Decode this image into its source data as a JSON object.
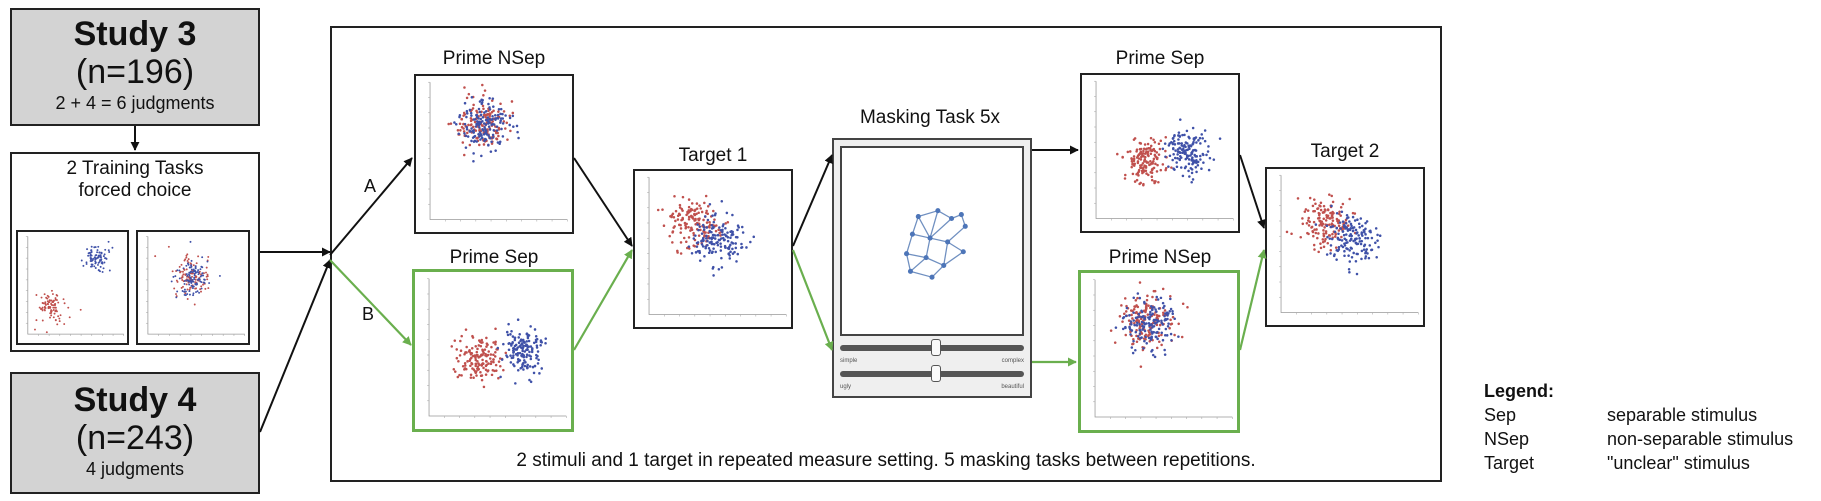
{
  "study3": {
    "title": "Study 3",
    "n": "(n=196)",
    "judgments": "2 + 4 = 6 judgments"
  },
  "training": {
    "line1": "2 Training Tasks",
    "line2": "forced choice"
  },
  "study4": {
    "title": "Study 4",
    "n": "(n=243)",
    "judgments": "4 judgments"
  },
  "paths": {
    "a": "A",
    "b": "B"
  },
  "panels": {
    "prime_nsep_top": "Prime NSep",
    "prime_sep_bottom": "Prime Sep",
    "target1": "Target 1",
    "masking": "Masking Task 5x",
    "prime_sep_top": "Prime Sep",
    "prime_nsep_bottom": "Prime NSep",
    "target2": "Target 2"
  },
  "sliders": [
    {
      "left": "simple",
      "right": "complex",
      "value": 0.52
    },
    {
      "left": "ugly",
      "right": "beautiful",
      "value": 0.52
    }
  ],
  "caption": "2 stimuli and 1 target in repeated measure setting. 5 masking tasks between repetitions.",
  "legend": {
    "title": "Legend:",
    "items": [
      {
        "term": "Sep",
        "desc": "separable stimulus"
      },
      {
        "term": "NSep",
        "desc": "non-separable stimulus"
      },
      {
        "term": "Target",
        "desc": "\"unclear\" stimulus"
      }
    ]
  },
  "colors": {
    "red": "#c0504d",
    "blue": "#3f51a8",
    "green": "#6aaf4e",
    "arrow": "#111111",
    "box_gray": "#d3d3d3"
  }
}
